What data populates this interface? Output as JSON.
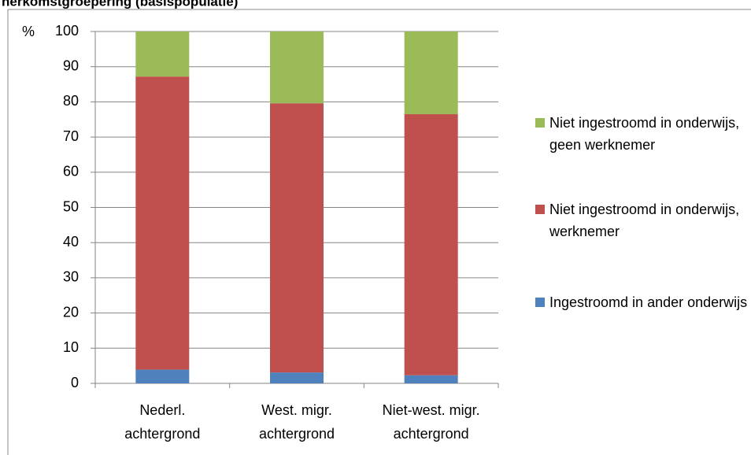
{
  "chart_data": {
    "type": "stacked_bar",
    "title": "herkomstgroepering (basispopulatie)",
    "y_label": "%",
    "categories": [
      "Nederl. achtergrond",
      "West. migr. achtergrond",
      "Niet-west. migr. achtergrond"
    ],
    "series": [
      {
        "name": "Ingestroomd in ander onderwijs",
        "color": "#4f81bd",
        "values": [
          3.9,
          3.1,
          2.3
        ]
      },
      {
        "name": "Niet ingestroomd in onderwijs, werknemer",
        "color": "#c0504d",
        "values": [
          83.3,
          76.5,
          74.2
        ]
      },
      {
        "name": "Niet ingestroomd in onderwijs, geen werknemer",
        "color": "#9bbb59",
        "values": [
          12.8,
          20.4,
          23.5
        ]
      }
    ],
    "ylim": [
      0,
      100
    ],
    "yticks": [
      0,
      10,
      20,
      30,
      40,
      50,
      60,
      70,
      80,
      90,
      100
    ],
    "grid": true,
    "legend": "right"
  }
}
